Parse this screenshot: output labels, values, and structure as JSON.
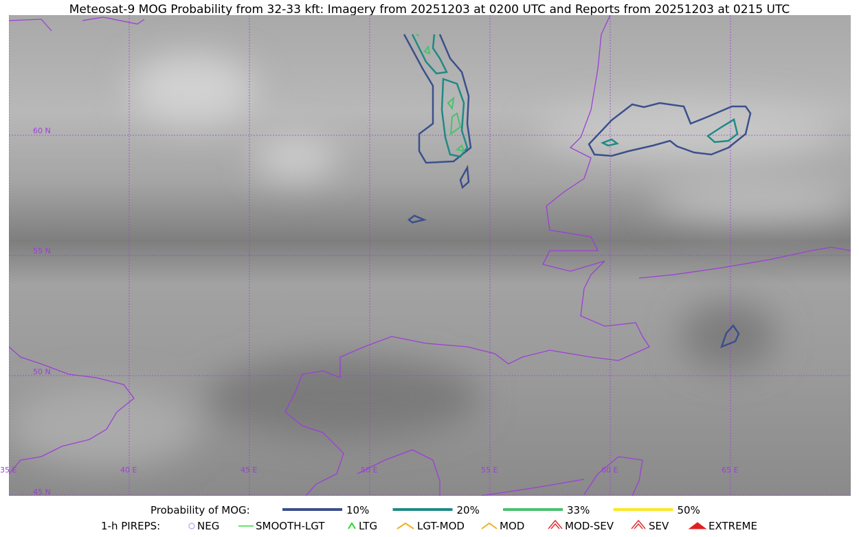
{
  "header": {
    "title": "Meteosat-9 MOG Probability from 32-33 kft: Imagery from 20251203 at 0200 UTC and Reports from 20251203 at 0215 UTC"
  },
  "map": {
    "lat_labels": [
      "60 N",
      "55 N",
      "50 N",
      "45 N"
    ],
    "lon_labels": [
      "35 E",
      "40 E",
      "45 E",
      "50 E",
      "55 E",
      "60 E",
      "65 E"
    ]
  },
  "legend": {
    "probability_title": "Probability of MOG:",
    "probability_items": [
      {
        "label": "10%",
        "color": "#3b4f8c"
      },
      {
        "label": "20%",
        "color": "#1f8a84"
      },
      {
        "label": "33%",
        "color": "#49c16d"
      },
      {
        "label": "50%",
        "color": "#fde725"
      }
    ],
    "pireps_title": "1-h PIREPS:",
    "pireps_items": [
      "NEG",
      "SMOOTH-LGT",
      "LTG",
      "LGT-MOD",
      "MOD",
      "MOD-SEV",
      "SEV",
      "EXTREME"
    ]
  }
}
